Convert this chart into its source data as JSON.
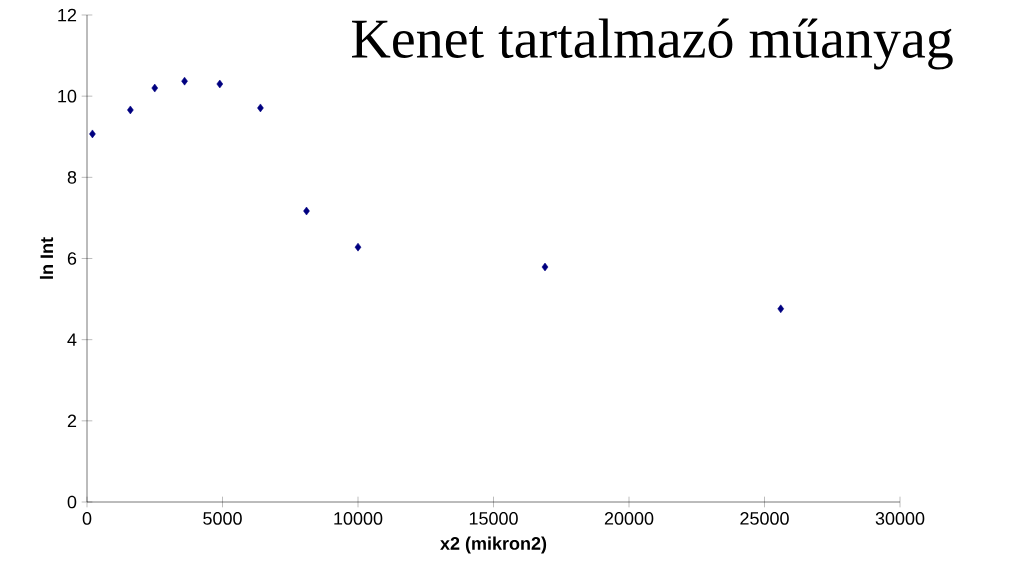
{
  "chart_data": {
    "type": "scatter",
    "title": "Kenet tartalmazó műanyag",
    "xlabel": "x2  (mikron2)",
    "ylabel": "ln Int",
    "x": [
      200,
      1600,
      2500,
      3600,
      4900,
      6400,
      8100,
      10000,
      16900,
      25600
    ],
    "series": [
      {
        "color": "#000080",
        "values": [
          9.07,
          9.66,
          10.2,
          10.37,
          10.3,
          9.71,
          7.17,
          6.28,
          5.79,
          4.76
        ]
      }
    ],
    "xlim": [
      0,
      30000
    ],
    "ylim": [
      0,
      12
    ],
    "xticks": [
      0,
      5000,
      10000,
      15000,
      20000,
      25000,
      30000
    ],
    "yticks": [
      0,
      2,
      4,
      6,
      8,
      10,
      12
    ],
    "grid": false,
    "marker": "diamond"
  }
}
